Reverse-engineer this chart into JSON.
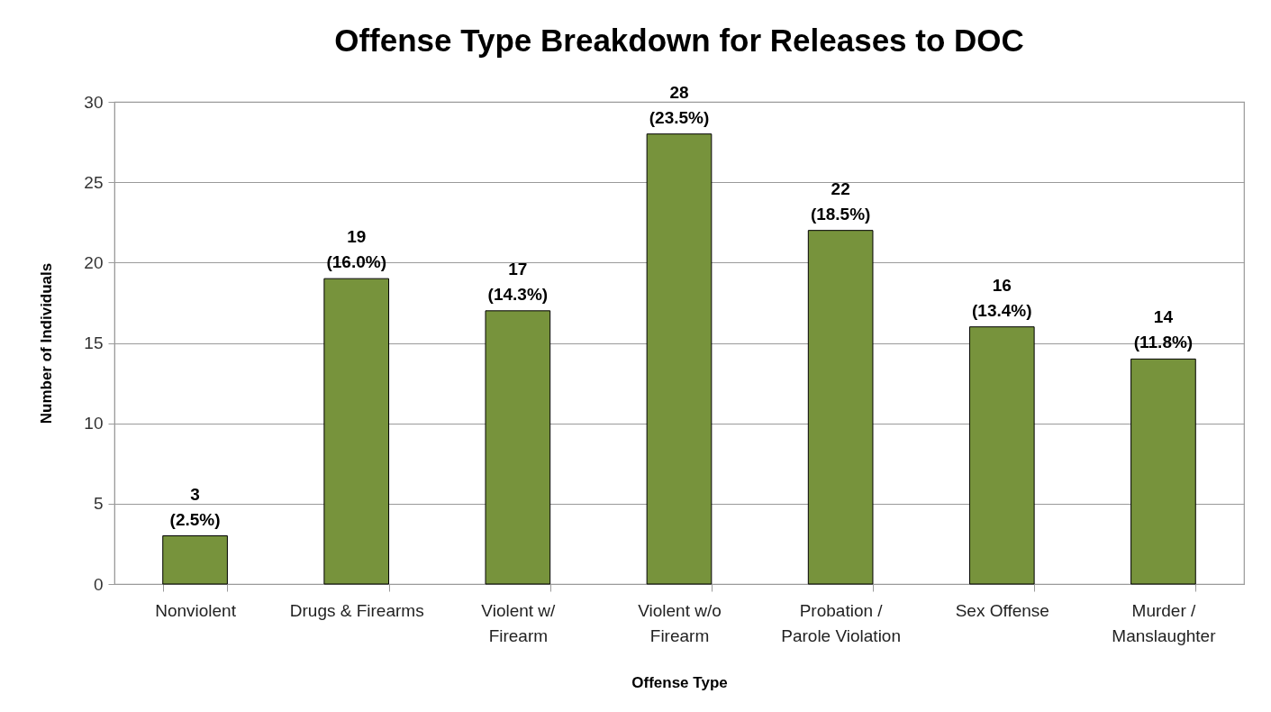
{
  "chart_data": {
    "type": "bar",
    "title": "Offense Type Breakdown for Releases to DOC",
    "xlabel": "Offense Type",
    "ylabel": "Number of Individuals",
    "categories": [
      "Nonviolent",
      "Drugs & Firearms",
      "Violent w/ Firearm",
      "Violent w/o Firearm",
      "Probation / Parole Violation",
      "Sex Offense",
      "Murder / Manslaughter"
    ],
    "values": [
      3,
      19,
      17,
      28,
      22,
      16,
      14
    ],
    "color": "#77933c",
    "value_labels": [
      "3 (2.5%)",
      "19 (16.0%)",
      "17 (14.3%)",
      "28 (23.5%)",
      "22 (18.5%)",
      "16 (13.4%)",
      "14 (11.8%)"
    ],
    "ylim": [
      0,
      30
    ],
    "yticks": [
      0,
      5,
      10,
      15,
      20,
      25,
      30
    ],
    "grid": "y"
  }
}
